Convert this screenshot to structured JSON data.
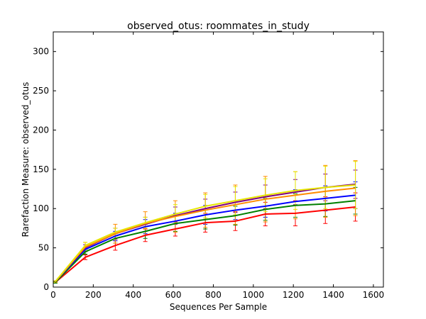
{
  "chart_data": {
    "type": "line",
    "title": "observed_otus: roommates_in_study",
    "xlabel": "Sequences Per Sample",
    "ylabel": "Rarefaction Measure: observed_otus",
    "xlim": [
      0,
      1650
    ],
    "ylim": [
      0,
      325
    ],
    "x_ticks": [
      0,
      200,
      400,
      600,
      800,
      1000,
      1200,
      1400,
      1600
    ],
    "y_ticks": [
      0,
      50,
      100,
      150,
      200,
      250,
      300
    ],
    "grid": false,
    "x": [
      10,
      160,
      310,
      460,
      610,
      760,
      910,
      1060,
      1210,
      1360,
      1510
    ],
    "series": [
      {
        "color": "#ff0000",
        "values": [
          6,
          38,
          53,
          66,
          74,
          82,
          84,
          93,
          94,
          98,
          102
        ],
        "errors": [
          1,
          3,
          6,
          8,
          9,
          12,
          12,
          15,
          16,
          17,
          18
        ]
      },
      {
        "color": "#008000",
        "values": [
          6,
          45,
          62,
          71,
          81,
          86,
          91,
          99,
          104,
          106,
          110
        ],
        "errors": [
          1,
          3,
          6,
          9,
          10,
          12,
          12,
          14,
          15,
          16,
          17
        ]
      },
      {
        "color": "#0000ff",
        "values": [
          7,
          48,
          65,
          77,
          84,
          92,
          98,
          103,
          109,
          113,
          117
        ],
        "errors": [
          1,
          3,
          6,
          9,
          10,
          12,
          12,
          14,
          15,
          16,
          17
        ]
      },
      {
        "color": "#800080",
        "values": [
          7,
          50,
          68,
          80,
          91,
          100,
          108,
          115,
          121,
          127,
          131
        ],
        "errors": [
          1,
          4,
          7,
          9,
          11,
          12,
          13,
          15,
          16,
          17,
          18
        ]
      },
      {
        "color": "#ff8c00",
        "values": [
          7,
          51,
          68,
          81,
          90,
          98,
          105,
          112,
          117,
          122,
          126
        ],
        "errors": [
          1,
          6,
          12,
          15,
          20,
          22,
          25,
          29,
          30,
          33,
          35
        ]
      },
      {
        "color": "#e6e600",
        "values": [
          7,
          53,
          70,
          82,
          93,
          103,
          110,
          117,
          123,
          127,
          130
        ],
        "errors": [
          1,
          4,
          5,
          7,
          12,
          15,
          18,
          21,
          24,
          27,
          30
        ]
      }
    ]
  }
}
